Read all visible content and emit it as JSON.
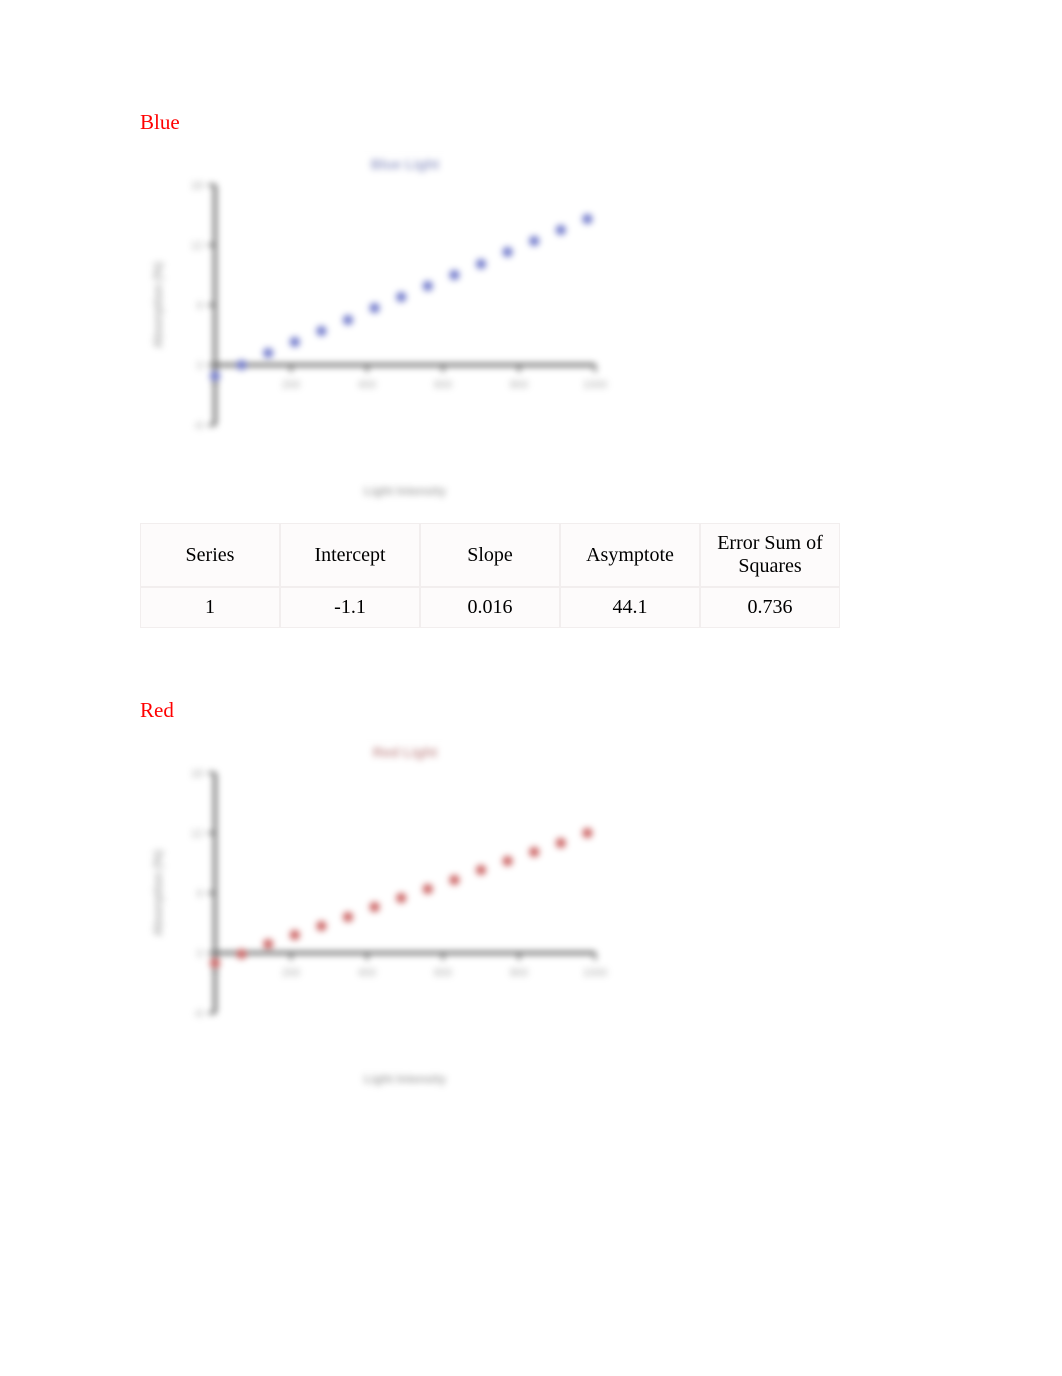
{
  "sections": {
    "blue": {
      "heading": "Blue",
      "heading_color": "#ff0000"
    },
    "red": {
      "heading": "Red",
      "heading_color": "#ff0000"
    }
  },
  "table": {
    "columns": [
      "Series",
      "Intercept",
      "Slope",
      "Asymptote",
      "Error Sum of Squares"
    ],
    "rows": [
      [
        "1",
        "-1.1",
        "0.016",
        "44.1",
        "0.736"
      ]
    ],
    "cell_bg": "#fdfbfb",
    "border_color": "#f2eeee",
    "text_color": "#000000",
    "font_size_pt": 15
  },
  "charts": {
    "blue": {
      "type": "scatter",
      "title": "Blue Light",
      "title_color": "#9aa0c9",
      "title_fontsize": 14,
      "xlabel": "Light Intensity",
      "ylabel": "Absorption (%)",
      "label_color": "#a8a8a8",
      "label_fontsize": 12,
      "axis_color": "#444444",
      "tick_color": "#a8a8a8",
      "background_color": "#ffffff",
      "xlim": [
        0,
        1000
      ],
      "ylim": [
        -6,
        18
      ],
      "xticks": [
        0,
        200,
        400,
        600,
        800,
        1000
      ],
      "yticks": [
        -6,
        0,
        6,
        12,
        18
      ],
      "marker_color": "#6b74c9",
      "marker_size": 5,
      "marker_shape": "circle",
      "points_x": [
        0,
        70,
        140,
        210,
        280,
        350,
        420,
        490,
        560,
        630,
        700,
        770,
        840,
        910,
        980
      ],
      "points_y": [
        -1.1,
        0.0,
        1.2,
        2.3,
        3.4,
        4.5,
        5.7,
        6.8,
        7.9,
        9.0,
        10.1,
        11.3,
        12.4,
        13.5,
        14.6
      ]
    },
    "red": {
      "type": "scatter",
      "title": "Red Light",
      "title_color": "#c99a9a",
      "title_fontsize": 14,
      "xlabel": "Light Intensity",
      "ylabel": "Absorption (%)",
      "label_color": "#a8a8a8",
      "label_fontsize": 12,
      "axis_color": "#444444",
      "tick_color": "#a8a8a8",
      "background_color": "#ffffff",
      "xlim": [
        0,
        1000
      ],
      "ylim": [
        -6,
        18
      ],
      "xticks": [
        0,
        200,
        400,
        600,
        800,
        1000
      ],
      "yticks": [
        -6,
        0,
        6,
        12,
        18
      ],
      "marker_color": "#c95c5c",
      "marker_size": 5,
      "marker_shape": "circle",
      "points_x": [
        0,
        70,
        140,
        210,
        280,
        350,
        420,
        490,
        560,
        630,
        700,
        770,
        840,
        910,
        980
      ],
      "points_y": [
        -1.0,
        -0.1,
        0.9,
        1.8,
        2.7,
        3.6,
        4.6,
        5.5,
        6.4,
        7.3,
        8.3,
        9.2,
        10.1,
        11.0,
        12.0
      ]
    }
  }
}
